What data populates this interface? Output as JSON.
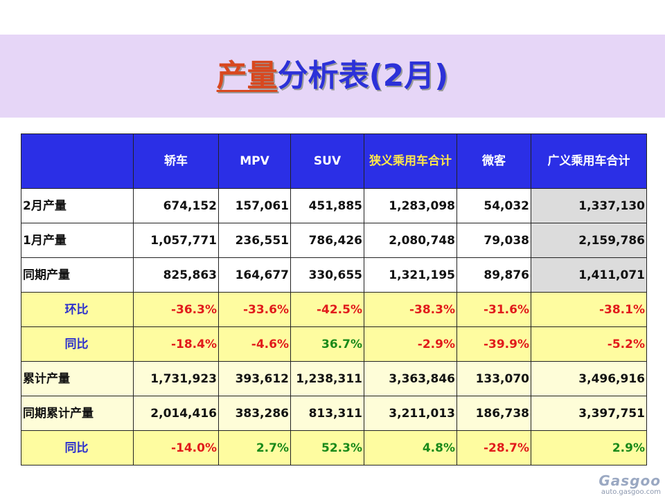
{
  "title": {
    "part1": "产量",
    "part2": "分析表(2月)"
  },
  "table": {
    "headers": [
      {
        "label": "",
        "yellow": false
      },
      {
        "label": "轿车",
        "yellow": false
      },
      {
        "label": "MPV",
        "yellow": false
      },
      {
        "label": "SUV",
        "yellow": false
      },
      {
        "label": "狭义乘用车合计",
        "yellow": true
      },
      {
        "label": "微客",
        "yellow": false
      },
      {
        "label": "广义乘用车合计",
        "yellow": false
      }
    ],
    "rows": [
      {
        "label": "2月产量",
        "kind": "plain",
        "values": [
          "674,152",
          "157,061",
          "451,885",
          "1,283,098",
          "54,032",
          "1,337,130"
        ]
      },
      {
        "label": "1月产量",
        "kind": "plain",
        "values": [
          "1,057,771",
          "236,551",
          "786,426",
          "2,080,748",
          "79,038",
          "2,159,786"
        ]
      },
      {
        "label": "同期产量",
        "kind": "plain",
        "values": [
          "825,863",
          "164,677",
          "330,655",
          "1,321,195",
          "89,876",
          "1,411,071"
        ]
      },
      {
        "label": "环比",
        "kind": "pct",
        "values": [
          "-36.3%",
          "-33.6%",
          "-42.5%",
          "-38.3%",
          "-31.6%",
          "-38.1%"
        ]
      },
      {
        "label": "同比",
        "kind": "pct",
        "values": [
          "-18.4%",
          "-4.6%",
          "36.7%",
          "-2.9%",
          "-39.9%",
          "-5.2%"
        ]
      },
      {
        "label": "累计产量",
        "kind": "cum",
        "values": [
          "1,731,923",
          "393,612",
          "1,238,311",
          "3,363,846",
          "133,070",
          "3,496,916"
        ]
      },
      {
        "label": "同期累计产量",
        "kind": "cum",
        "values": [
          "2,014,416",
          "383,286",
          "813,311",
          "3,211,013",
          "186,738",
          "3,397,751"
        ]
      },
      {
        "label": "同比",
        "kind": "pct",
        "values": [
          "-14.0%",
          "2.7%",
          "52.3%",
          "4.8%",
          "-28.7%",
          "2.9%"
        ]
      }
    ]
  },
  "watermark": {
    "logo": "Gasgoo",
    "url": "auto.gasgoo.com"
  },
  "colors": {
    "title_band": "#e6d6f7",
    "header_bg": "#2b2fe6",
    "negative": "#e11b1b",
    "positive": "#1a8a1a",
    "pct_row_bg": "#fefca0",
    "cum_row_bg": "#fefdd8",
    "total_col_bg": "#dcdcdc"
  }
}
